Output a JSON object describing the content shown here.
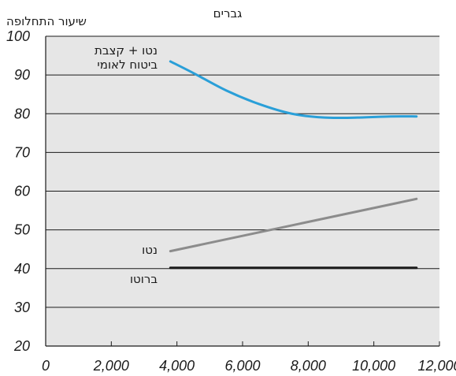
{
  "chart_data": {
    "type": "line",
    "title": "גברים",
    "ylabel": "שיעור התחלופה",
    "xlabel": "",
    "xlim": [
      0,
      12000
    ],
    "ylim": [
      20,
      100
    ],
    "x_ticks": [
      0,
      2000,
      4000,
      6000,
      8000,
      10000,
      12000
    ],
    "x_tick_labels": [
      "0",
      "2,000",
      "4,000",
      "6,000",
      "8,000",
      "10,000",
      "12,000"
    ],
    "y_ticks": [
      20,
      30,
      40,
      50,
      60,
      70,
      80,
      90,
      100
    ],
    "y_tick_labels": [
      "20",
      "30",
      "40",
      "50",
      "60",
      "70",
      "80",
      "90",
      "100"
    ],
    "grid": "horizontal",
    "series": [
      {
        "name": "נטו + קצבת ביטוח לאומי",
        "label_lines": [
          "נטו + קצבת",
          "ביטוח לאומי"
        ],
        "color": "#2a9fd8",
        "x": [
          3800,
          4500,
          5500,
          6500,
          7500,
          8500,
          9500,
          10500,
          11300
        ],
        "y": [
          93.5,
          90.5,
          86,
          82.5,
          80,
          79,
          79,
          79.3,
          79.3
        ]
      },
      {
        "name": "נטו",
        "label_lines": [
          "נטו"
        ],
        "color": "#8c8c8c",
        "x": [
          3800,
          11300
        ],
        "y": [
          44.5,
          58
        ]
      },
      {
        "name": "ברוטו",
        "label_lines": [
          "ברוטו"
        ],
        "color": "#1a1a1a",
        "x": [
          3800,
          11300
        ],
        "y": [
          40.2,
          40.2
        ]
      }
    ]
  }
}
